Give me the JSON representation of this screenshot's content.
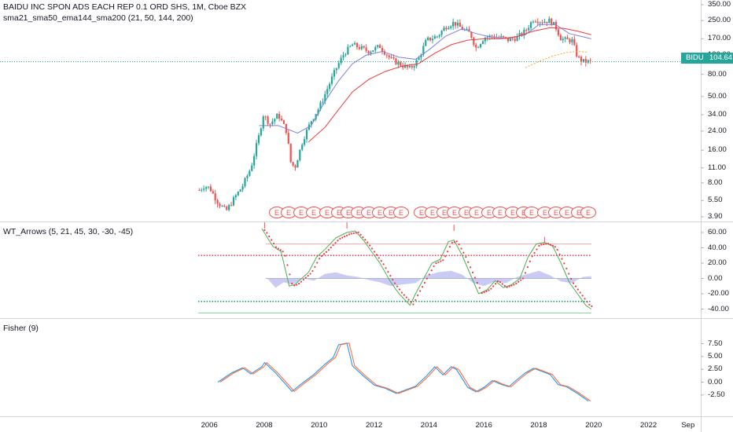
{
  "header": {
    "title": "BAIDU INC SPON ADS EACH REP 0.1 ORD SHS, 1M, Cboe BZX",
    "ma_legend": "sma21_sma50_ema144_sma200 (21, 50, 144, 200)"
  },
  "price_badge": {
    "symbol": "BIDU",
    "value": "104.64"
  },
  "colors": {
    "up": "#26a69a",
    "down": "#ef5350",
    "sma21": "#7b7fe0",
    "sma50": "#ef3b3b",
    "ema144": "#f6a623",
    "wt1": "#4caf50",
    "wt2": "#f23645",
    "histogram": "#b2b5f0",
    "fisher": "#2196f3",
    "trigger": "#ff6d3b",
    "last_price_line": "#26a69a"
  },
  "chart_data": [
    {
      "type": "candlestick",
      "title": "BAIDU INC SPON ADS EACH REP 0.1 ORD SHS, 1M, Cboe BZX",
      "scale": "log",
      "y_ticks": [
        "350.00",
        "250.00",
        "170.00",
        "120.00",
        "80.00",
        "50.00",
        "34.00",
        "24.00",
        "16.00",
        "11.00",
        "8.00",
        "5.50",
        "3.90"
      ],
      "x_ticks": [
        "2006",
        "2008",
        "2010",
        "2012",
        "2014",
        "2016",
        "2018",
        "2020",
        "2022",
        "Sep"
      ],
      "last_price": 104.64,
      "price_path": [
        [
          2005.6,
          6.8
        ],
        [
          2005.8,
          7.5
        ],
        [
          2006.0,
          7.2
        ],
        [
          2006.3,
          5.3
        ],
        [
          2006.6,
          4.4
        ],
        [
          2006.9,
          5.8
        ],
        [
          2007.2,
          7.5
        ],
        [
          2007.5,
          11
        ],
        [
          2007.8,
          22
        ],
        [
          2007.95,
          34
        ],
        [
          2008.2,
          28
        ],
        [
          2008.5,
          34
        ],
        [
          2008.8,
          24
        ],
        [
          2008.95,
          12.5
        ],
        [
          2009.1,
          11
        ],
        [
          2009.4,
          20
        ],
        [
          2009.7,
          30
        ],
        [
          2010.0,
          40
        ],
        [
          2010.3,
          60
        ],
        [
          2010.6,
          90
        ],
        [
          2010.9,
          125
        ],
        [
          2011.2,
          150
        ],
        [
          2011.5,
          140
        ],
        [
          2011.8,
          130
        ],
        [
          2012.2,
          145
        ],
        [
          2012.6,
          110
        ],
        [
          2012.9,
          100
        ],
        [
          2013.3,
          90
        ],
        [
          2013.6,
          110
        ],
        [
          2013.9,
          165
        ],
        [
          2014.3,
          180
        ],
        [
          2014.6,
          220
        ],
        [
          2014.9,
          240
        ],
        [
          2015.2,
          210
        ],
        [
          2015.5,
          190
        ],
        [
          2015.7,
          140
        ],
        [
          2016.0,
          175
        ],
        [
          2016.3,
          180
        ],
        [
          2016.6,
          175
        ],
        [
          2016.9,
          165
        ],
        [
          2017.2,
          175
        ],
        [
          2017.5,
          200
        ],
        [
          2017.8,
          260
        ],
        [
          2018.1,
          245
        ],
        [
          2018.4,
          250
        ],
        [
          2018.6,
          220
        ],
        [
          2018.8,
          170
        ],
        [
          2019.0,
          165
        ],
        [
          2019.2,
          165
        ],
        [
          2019.4,
          115
        ],
        [
          2019.6,
          105
        ],
        [
          2019.8,
          104.64
        ]
      ],
      "annotations": {
        "marker_letter": "E",
        "count": 33
      }
    },
    {
      "type": "line",
      "name": "WT_Arrows (5, 21, 45, 30, -30, -45)",
      "y_ticks": [
        "60.00",
        "40.00",
        "20.00",
        "0.00",
        "-20.00",
        "-40.00"
      ],
      "levels": [
        45,
        30,
        -30,
        -45
      ]
    },
    {
      "type": "line",
      "name": "Fisher (9)",
      "y_ticks": [
        "7.50",
        "5.00",
        "2.50",
        "0.00",
        "-2.50"
      ],
      "series_path": [
        [
          2006.3,
          0
        ],
        [
          2006.8,
          1.8
        ],
        [
          2007.2,
          2.8
        ],
        [
          2007.5,
          1.6
        ],
        [
          2007.9,
          3.0
        ],
        [
          2008.0,
          3.8
        ],
        [
          2008.4,
          1.8
        ],
        [
          2008.8,
          -0.6
        ],
        [
          2009.0,
          -1.8
        ],
        [
          2009.3,
          -0.5
        ],
        [
          2009.8,
          1.5
        ],
        [
          2010.2,
          3.5
        ],
        [
          2010.5,
          4.8
        ],
        [
          2010.7,
          7.3
        ],
        [
          2011.0,
          7.6
        ],
        [
          2011.2,
          3.2
        ],
        [
          2011.6,
          1.2
        ],
        [
          2012.0,
          -0.6
        ],
        [
          2012.4,
          -1.2
        ],
        [
          2012.8,
          -2.2
        ],
        [
          2013.2,
          -1.4
        ],
        [
          2013.5,
          -0.8
        ],
        [
          2013.9,
          1.2
        ],
        [
          2014.2,
          3.0
        ],
        [
          2014.5,
          1.4
        ],
        [
          2014.8,
          3.0
        ],
        [
          2015.0,
          2.4
        ],
        [
          2015.4,
          -1.0
        ],
        [
          2015.7,
          -1.9
        ],
        [
          2016.0,
          -1.0
        ],
        [
          2016.3,
          0.3
        ],
        [
          2016.6,
          -0.4
        ],
        [
          2016.9,
          -0.9
        ],
        [
          2017.2,
          0.5
        ],
        [
          2017.5,
          1.8
        ],
        [
          2017.8,
          2.7
        ],
        [
          2018.1,
          2.1
        ],
        [
          2018.4,
          1.5
        ],
        [
          2018.7,
          -0.5
        ],
        [
          2019.0,
          -0.9
        ],
        [
          2019.4,
          -2.2
        ],
        [
          2019.8,
          -3.7
        ]
      ]
    }
  ],
  "legends": {
    "wt": "WT_Arrows (5, 21, 45, 30, -30, -45)",
    "fisher": "Fisher (9)"
  }
}
